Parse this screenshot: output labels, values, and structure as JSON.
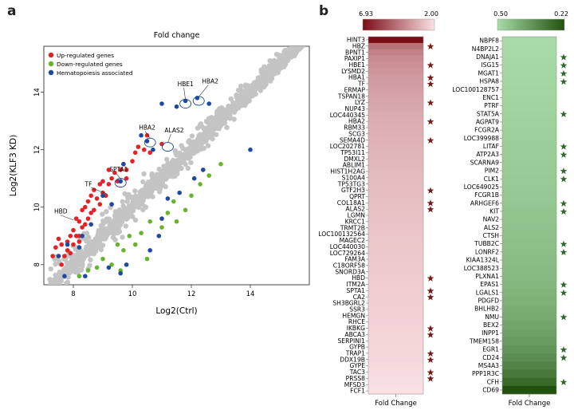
{
  "panel_labels": {
    "a": "a",
    "b": "b"
  },
  "chart_data": [
    {
      "type": "scatter",
      "title": "Fold change",
      "xlabel": "Log2(Ctrl)",
      "ylabel": "Log2(KLF3 KD)",
      "xlim": [
        7.0,
        16.0
      ],
      "ylim": [
        7.3,
        15.6
      ],
      "xticks": [
        8,
        10,
        12,
        14
      ],
      "yticks": [
        8,
        10,
        12,
        14
      ],
      "legend": {
        "placement": "top-left",
        "entries": [
          {
            "name": "Up-regulated genes",
            "color": "#e32227"
          },
          {
            "name": "Down-regulated genes",
            "color": "#6ab42d"
          },
          {
            "name": "Hematopoiesis associated",
            "color": "#1d4aa0"
          }
        ]
      },
      "colors": {
        "background": "#c4c4c4",
        "up": "#e32227",
        "down": "#6ab42d",
        "hema": "#1d4aa0"
      },
      "series": [
        {
          "name": "Up-regulated genes",
          "color": "#e32227",
          "points": [
            [
              7.4,
              8.6
            ],
            [
              7.5,
              8.3
            ],
            [
              7.6,
              8.7
            ],
            [
              7.7,
              8.3
            ],
            [
              7.8,
              8.8
            ],
            [
              7.8,
              8.5
            ],
            [
              7.9,
              9.0
            ],
            [
              8.0,
              8.7
            ],
            [
              8.0,
              9.2
            ],
            [
              8.1,
              9.0
            ],
            [
              8.1,
              9.6
            ],
            [
              8.2,
              9.0
            ],
            [
              8.2,
              9.5
            ],
            [
              8.3,
              9.3
            ],
            [
              8.3,
              9.9
            ],
            [
              8.4,
              9.4
            ],
            [
              8.4,
              10.0
            ],
            [
              8.5,
              9.6
            ],
            [
              8.5,
              10.2
            ],
            [
              8.6,
              9.8
            ],
            [
              8.6,
              10.4
            ],
            [
              8.7,
              9.9
            ],
            [
              8.8,
              10.3
            ],
            [
              8.9,
              10.1
            ],
            [
              9.0,
              10.5
            ],
            [
              9.0,
              10.9
            ],
            [
              9.1,
              10.4
            ],
            [
              9.2,
              10.8
            ],
            [
              9.3,
              11.0
            ],
            [
              9.4,
              11.2
            ],
            [
              9.5,
              10.9
            ],
            [
              9.6,
              11.3
            ],
            [
              9.7,
              11.5
            ],
            [
              9.8,
              11.3
            ],
            [
              10.0,
              11.6
            ],
            [
              10.1,
              11.9
            ],
            [
              10.2,
              12.1
            ],
            [
              10.4,
              12.0
            ],
            [
              10.5,
              12.5
            ],
            [
              7.5,
              8.9
            ],
            [
              7.3,
              8.3
            ],
            [
              7.6,
              8.0
            ],
            [
              7.9,
              8.4
            ],
            [
              8.2,
              8.8
            ],
            [
              8.7,
              10.6
            ],
            [
              9.2,
              11.3
            ],
            [
              8.9,
              10.8
            ],
            [
              9.8,
              11.0
            ],
            [
              10.6,
              11.9
            ],
            [
              11.0,
              12.2
            ]
          ]
        },
        {
          "name": "Down-regulated genes",
          "color": "#6ab42d",
          "points": [
            [
              8.2,
              7.6
            ],
            [
              8.5,
              7.8
            ],
            [
              8.8,
              7.9
            ],
            [
              9.0,
              8.2
            ],
            [
              9.3,
              8.0
            ],
            [
              9.5,
              8.7
            ],
            [
              9.7,
              8.5
            ],
            [
              9.9,
              9.0
            ],
            [
              10.1,
              8.7
            ],
            [
              10.3,
              9.1
            ],
            [
              10.6,
              9.5
            ],
            [
              11.0,
              9.3
            ],
            [
              11.2,
              9.8
            ],
            [
              11.4,
              10.2
            ],
            [
              11.8,
              9.9
            ],
            [
              12.0,
              10.4
            ],
            [
              12.3,
              10.8
            ],
            [
              12.6,
              11.1
            ],
            [
              13.0,
              11.5
            ],
            [
              10.5,
              8.2
            ],
            [
              9.6,
              7.8
            ],
            [
              11.5,
              9.5
            ]
          ]
        },
        {
          "name": "Hematopoiesis associated",
          "color": "#1d4aa0",
          "points": [
            [
              7.5,
              8.3
            ],
            [
              7.8,
              8.7
            ],
            [
              8.2,
              8.6
            ],
            [
              8.3,
              9.0
            ],
            [
              8.6,
              9.4
            ],
            [
              9.0,
              10.4
            ],
            [
              9.3,
              10.1
            ],
            [
              9.6,
              10.9
            ],
            [
              9.7,
              11.5
            ],
            [
              10.3,
              12.5
            ],
            [
              10.5,
              12.3
            ],
            [
              10.7,
              12.0
            ],
            [
              11.5,
              13.5
            ],
            [
              11.0,
              13.6
            ],
            [
              11.8,
              13.7
            ],
            [
              12.2,
              13.8
            ],
            [
              12.6,
              13.6
            ],
            [
              14.0,
              12.0
            ],
            [
              9.2,
              7.9
            ],
            [
              9.6,
              7.7
            ],
            [
              9.8,
              8.0
            ],
            [
              10.6,
              8.5
            ],
            [
              10.9,
              9.0
            ],
            [
              11.0,
              9.6
            ],
            [
              11.2,
              10.3
            ],
            [
              11.6,
              10.5
            ],
            [
              12.1,
              11.0
            ],
            [
              12.4,
              11.3
            ],
            [
              8.4,
              7.6
            ],
            [
              7.7,
              7.6
            ]
          ]
        }
      ],
      "annotations": [
        {
          "label": "HBE1",
          "x": 11.8,
          "y": 13.6,
          "circled": true
        },
        {
          "label": "HBA2",
          "x": 12.25,
          "y": 13.7,
          "circled": true
        },
        {
          "label": "HBA2",
          "x": 10.6,
          "y": 12.25,
          "circled": true
        },
        {
          "label": "ALAS2",
          "x": 11.2,
          "y": 12.1,
          "circled": true
        },
        {
          "label": "SPTA1",
          "x": 9.6,
          "y": 10.85,
          "circled": true
        },
        {
          "label": "TF",
          "x": 9.15,
          "y": 10.4,
          "circled": false
        },
        {
          "label": "HBD",
          "x": 8.0,
          "y": 9.5,
          "circled": false
        }
      ]
    },
    {
      "type": "heatmap",
      "xlabel": "Fold Change",
      "colorbar": {
        "max_label": "6.93",
        "min_label": "2.00",
        "max": 6.93,
        "min": 2.0,
        "color_high": "#7b0c16",
        "color_low": "#fbe1e4"
      },
      "star_color": "#7a1a1a",
      "rows": [
        {
          "gene": "HINT3",
          "value": 6.93,
          "star": false
        },
        {
          "gene": "HBZ",
          "value": 4.6,
          "star": true
        },
        {
          "gene": "BPNT1",
          "value": 4.2,
          "star": false
        },
        {
          "gene": "PAXIP1",
          "value": 4.0,
          "star": false
        },
        {
          "gene": "HBE1",
          "value": 3.85,
          "star": true
        },
        {
          "gene": "LYSMD2",
          "value": 3.75,
          "star": false
        },
        {
          "gene": "HBA1",
          "value": 3.65,
          "star": true
        },
        {
          "gene": "TF",
          "value": 3.58,
          "star": true
        },
        {
          "gene": "ERMAP",
          "value": 3.5,
          "star": false
        },
        {
          "gene": "TSPAN18",
          "value": 3.43,
          "star": false
        },
        {
          "gene": "LYZ",
          "value": 3.37,
          "star": true
        },
        {
          "gene": "NUP43",
          "value": 3.31,
          "star": false
        },
        {
          "gene": "LOC440345",
          "value": 3.26,
          "star": false
        },
        {
          "gene": "HBA2",
          "value": 3.21,
          "star": true
        },
        {
          "gene": "RBM33",
          "value": 3.16,
          "star": false
        },
        {
          "gene": "SCG3",
          "value": 3.12,
          "star": false
        },
        {
          "gene": "SEMA4D",
          "value": 3.08,
          "star": true
        },
        {
          "gene": "LOC202781",
          "value": 3.04,
          "star": false
        },
        {
          "gene": "TP53I11",
          "value": 3.0,
          "star": false
        },
        {
          "gene": "DMXL2",
          "value": 2.97,
          "star": false
        },
        {
          "gene": "ABLIM1",
          "value": 2.94,
          "star": false
        },
        {
          "gene": "HIST1H2AG",
          "value": 2.91,
          "star": false
        },
        {
          "gene": "S100A4",
          "value": 2.88,
          "star": false
        },
        {
          "gene": "TP53TG3",
          "value": 2.85,
          "star": false
        },
        {
          "gene": "GTF2H3",
          "value": 2.82,
          "star": true
        },
        {
          "gene": "QPRT",
          "value": 2.79,
          "star": false
        },
        {
          "gene": "COL18A1",
          "value": 2.76,
          "star": true
        },
        {
          "gene": "ALAS2",
          "value": 2.74,
          "star": true
        },
        {
          "gene": "LGMN",
          "value": 2.71,
          "star": false
        },
        {
          "gene": "KRCC1",
          "value": 2.69,
          "star": false
        },
        {
          "gene": "TRMT2B",
          "value": 2.66,
          "star": false
        },
        {
          "gene": "LOC100132564",
          "value": 2.64,
          "star": false
        },
        {
          "gene": "MAGEC2",
          "value": 2.61,
          "star": false
        },
        {
          "gene": "LOC440030",
          "value": 2.59,
          "star": false
        },
        {
          "gene": "LOC729264",
          "value": 2.57,
          "star": false
        },
        {
          "gene": "FAM3A",
          "value": 2.54,
          "star": false
        },
        {
          "gene": "C18ORF58",
          "value": 2.52,
          "star": false
        },
        {
          "gene": "SNORD3A",
          "value": 2.5,
          "star": false
        },
        {
          "gene": "HBD",
          "value": 2.48,
          "star": true
        },
        {
          "gene": "ITM2A",
          "value": 2.46,
          "star": false
        },
        {
          "gene": "SPTA1",
          "value": 2.44,
          "star": true
        },
        {
          "gene": "CA2",
          "value": 2.42,
          "star": true
        },
        {
          "gene": "SH3BGRL2",
          "value": 2.4,
          "star": false
        },
        {
          "gene": "SSR3",
          "value": 2.38,
          "star": false
        },
        {
          "gene": "HEMGN",
          "value": 2.36,
          "star": false
        },
        {
          "gene": "RHCE",
          "value": 2.34,
          "star": false
        },
        {
          "gene": "IKBKG",
          "value": 2.32,
          "star": true
        },
        {
          "gene": "ABCA3",
          "value": 2.3,
          "star": true
        },
        {
          "gene": "SERPINI1",
          "value": 2.28,
          "star": false
        },
        {
          "gene": "GYPB",
          "value": 2.26,
          "star": false
        },
        {
          "gene": "TRAP1",
          "value": 2.24,
          "star": true
        },
        {
          "gene": "DDX19B",
          "value": 2.22,
          "star": true
        },
        {
          "gene": "GYPE",
          "value": 2.16,
          "star": false
        },
        {
          "gene": "TAC3",
          "value": 2.12,
          "star": true
        },
        {
          "gene": "PRSS8",
          "value": 2.08,
          "star": true
        },
        {
          "gene": "MFSD3",
          "value": 2.04,
          "star": false
        },
        {
          "gene": "FCF1",
          "value": 2.0,
          "star": false
        }
      ]
    },
    {
      "type": "heatmap",
      "xlabel": "Fold Change",
      "colorbar": {
        "max_label": "0.50",
        "min_label": "0.22",
        "max": 0.5,
        "min": 0.22,
        "color_high": "#a9dba8",
        "color_low": "#22510f"
      },
      "star_color": "#2f6a2a",
      "rows": [
        {
          "gene": "NBPF8",
          "value": 0.5,
          "star": false
        },
        {
          "gene": "N4BP2L2",
          "value": 0.498,
          "star": false
        },
        {
          "gene": "DNAJA1",
          "value": 0.496,
          "star": true
        },
        {
          "gene": "ISG15",
          "value": 0.494,
          "star": true
        },
        {
          "gene": "MGAT1",
          "value": 0.492,
          "star": true
        },
        {
          "gene": "HSPA8",
          "value": 0.49,
          "star": true
        },
        {
          "gene": "LOC100128757",
          "value": 0.488,
          "star": false
        },
        {
          "gene": "ENC1",
          "value": 0.486,
          "star": false
        },
        {
          "gene": "PTRF",
          "value": 0.484,
          "star": false
        },
        {
          "gene": "STAT5A",
          "value": 0.482,
          "star": true
        },
        {
          "gene": "AGPAT9",
          "value": 0.48,
          "star": false
        },
        {
          "gene": "FCGR2A",
          "value": 0.478,
          "star": false
        },
        {
          "gene": "LOC399988",
          "value": 0.476,
          "star": false
        },
        {
          "gene": "LITAF",
          "value": 0.474,
          "star": true
        },
        {
          "gene": "ATP2A3",
          "value": 0.472,
          "star": true
        },
        {
          "gene": "SCARNA9",
          "value": 0.47,
          "star": false
        },
        {
          "gene": "PIM2",
          "value": 0.468,
          "star": true
        },
        {
          "gene": "CLK1",
          "value": 0.466,
          "star": true
        },
        {
          "gene": "LOC649025",
          "value": 0.464,
          "star": false
        },
        {
          "gene": "FCGR1B",
          "value": 0.462,
          "star": false
        },
        {
          "gene": "ARHGEF6",
          "value": 0.459,
          "star": true
        },
        {
          "gene": "KIT",
          "value": 0.456,
          "star": true
        },
        {
          "gene": "NAV2",
          "value": 0.453,
          "star": false
        },
        {
          "gene": "ALS2",
          "value": 0.45,
          "star": false
        },
        {
          "gene": "CTSH",
          "value": 0.447,
          "star": false
        },
        {
          "gene": "TUBB2C",
          "value": 0.444,
          "star": true
        },
        {
          "gene": "LONRF2",
          "value": 0.441,
          "star": true
        },
        {
          "gene": "KIAA1324L",
          "value": 0.438,
          "star": false
        },
        {
          "gene": "LOC388523",
          "value": 0.434,
          "star": false
        },
        {
          "gene": "PLXNA1",
          "value": 0.43,
          "star": false
        },
        {
          "gene": "EPAS1",
          "value": 0.425,
          "star": true
        },
        {
          "gene": "LGALS1",
          "value": 0.42,
          "star": true
        },
        {
          "gene": "PDGFD",
          "value": 0.414,
          "star": false
        },
        {
          "gene": "BHLHB2",
          "value": 0.407,
          "star": false
        },
        {
          "gene": "NMU",
          "value": 0.399,
          "star": true
        },
        {
          "gene": "BEX2",
          "value": 0.39,
          "star": false
        },
        {
          "gene": "INPP1",
          "value": 0.38,
          "star": false
        },
        {
          "gene": "TMEM158",
          "value": 0.368,
          "star": false
        },
        {
          "gene": "EGR1",
          "value": 0.355,
          "star": true
        },
        {
          "gene": "CD24",
          "value": 0.34,
          "star": true
        },
        {
          "gene": "MS4A3",
          "value": 0.322,
          "star": false
        },
        {
          "gene": "PPP1R3C",
          "value": 0.3,
          "star": false
        },
        {
          "gene": "CFH",
          "value": 0.27,
          "star": true
        },
        {
          "gene": "CD69",
          "value": 0.22,
          "star": false
        }
      ]
    }
  ]
}
